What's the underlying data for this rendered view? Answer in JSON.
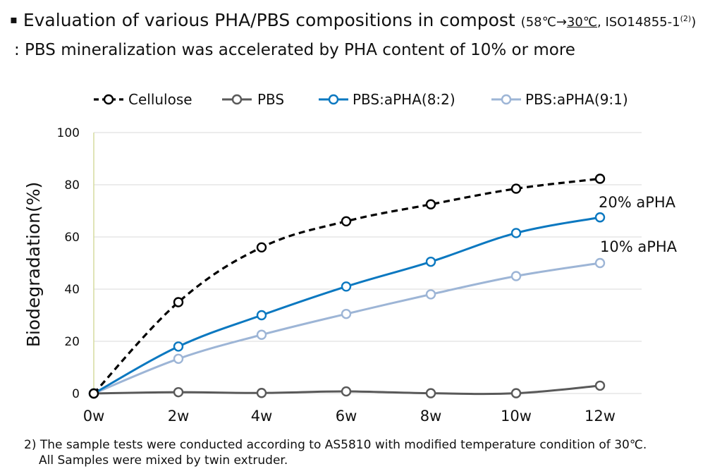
{
  "header": {
    "bullet": "▪",
    "title": "Evaluation of various PHA/PBS compositions in compost",
    "cond_prefix": "(58℃→",
    "cond_underlined": "30℃",
    "cond_suffix": ", ISO14855-1",
    "cond_sup": "(2)",
    "cond_close": ")",
    "subtitle": ": PBS mineralization was accelerated by PHA content of 10% or more"
  },
  "footnote": {
    "line1": "2) The sample tests were conducted according to AS5810 with modified temperature condition of 30℃.",
    "line2": "All Samples were mixed by twin extruder."
  },
  "colors": {
    "cellulose": "#000000",
    "pbs": "#595959",
    "aPHA82": "#0b78c0",
    "aPHA91": "#9db5d6",
    "grid": "#d9d9d9",
    "yaxis": "#d6dc9f"
  },
  "chart_data": {
    "type": "line",
    "title": "",
    "xlabel": "",
    "ylabel": "Biodegradation(%)",
    "categories": [
      "0w",
      "2w",
      "4w",
      "6w",
      "8w",
      "10w",
      "12w"
    ],
    "yticks": [
      "0",
      "20",
      "40",
      "60",
      "80",
      "100"
    ],
    "ylim": [
      0,
      100
    ],
    "grid": true,
    "legend_position": "top",
    "series": [
      {
        "name": "Cellulose",
        "values": [
          0,
          35,
          56,
          66,
          72.5,
          78.5,
          82.3
        ],
        "dash": true
      },
      {
        "name": "PBS",
        "values": [
          0,
          0.5,
          0.2,
          0.8,
          0.1,
          0.1,
          3
        ]
      },
      {
        "name": "PBS:aPHA(8:2)",
        "values": [
          0,
          18,
          30,
          41,
          50.5,
          61.5,
          67.5
        ]
      },
      {
        "name": "PBS:aPHA(9:1)",
        "values": [
          0,
          13.3,
          22.5,
          30.5,
          38,
          45,
          50
        ]
      }
    ],
    "annotations": [
      "20% aPHA",
      "10% aPHA"
    ]
  }
}
